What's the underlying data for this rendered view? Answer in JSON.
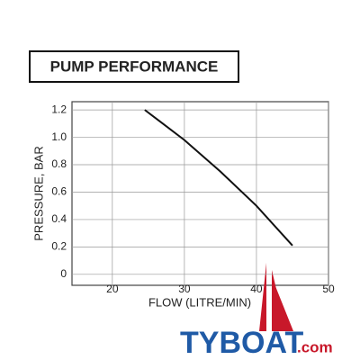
{
  "chart_data": {
    "type": "line",
    "title": "PUMP PERFORMANCE",
    "x_label": "FLOW (LITRE/MIN)",
    "y_label": "PRESSURE, BAR",
    "series": [
      {
        "x": [
          24.5,
          27,
          30,
          35,
          40,
          45
        ],
        "values": [
          1.2,
          1.1,
          0.98,
          0.75,
          0.5,
          0.21
        ],
        "color": "#111111"
      }
    ],
    "xlim": [
      14.4,
      50
    ],
    "xticks": [
      20,
      30,
      40,
      50
    ],
    "ylim": [
      -0.08,
      1.26
    ],
    "yticks": [
      0,
      0.2,
      0.4,
      0.6,
      0.8,
      {
        "value": 1,
        "label": "1.0"
      },
      1.2
    ],
    "grid": true
  },
  "watermark": {
    "brand": "TYBOAT",
    "suffix": ".com"
  }
}
